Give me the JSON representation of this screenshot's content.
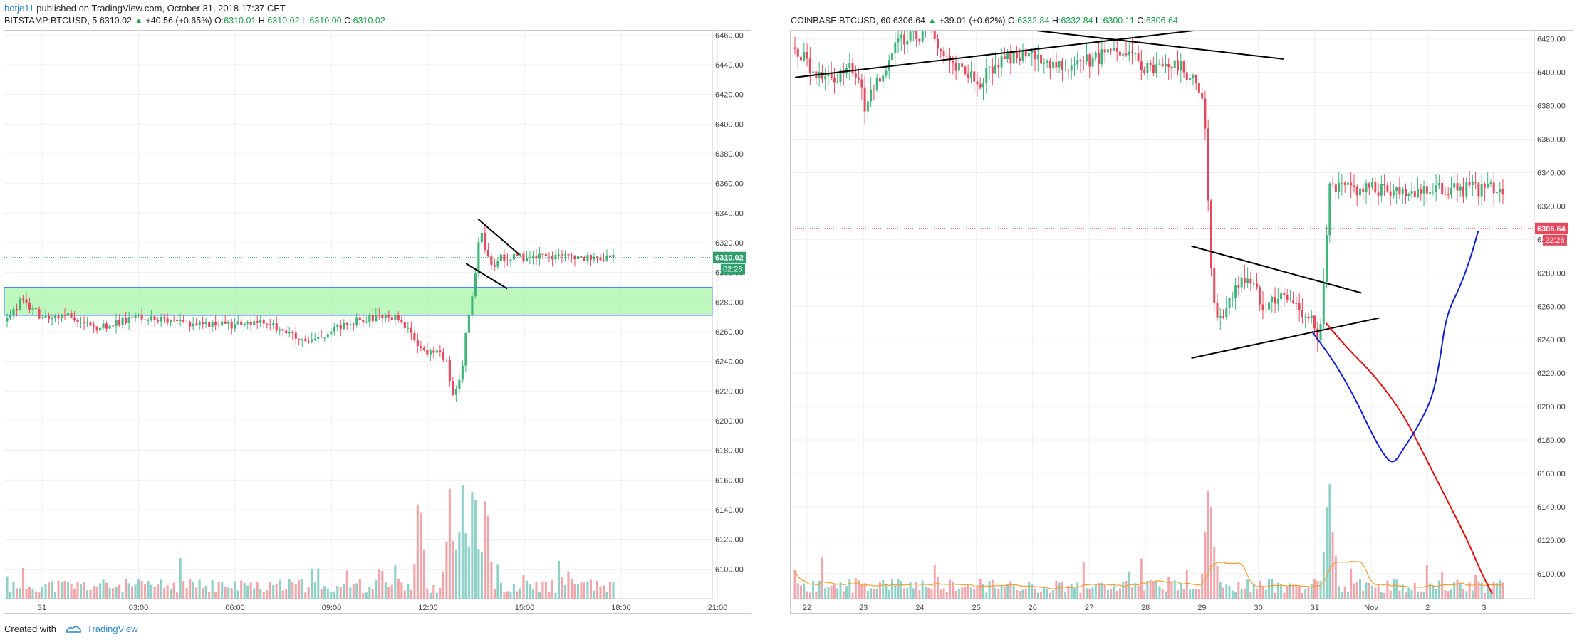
{
  "header": {
    "user": "botje11",
    "published": " published on TradingView.com, October 31, 2018 17:37 CET"
  },
  "left_symbol": {
    "name": "BITSTAMP:BTCUSD, 5",
    "last": "6310.02",
    "change": "+40.56 (+0.65%)",
    "o_label": "O:",
    "o": "6310.01",
    "h_label": "H:",
    "h": "6310.02",
    "l_label": "L:",
    "l": "6310.00",
    "c_label": "C:",
    "c": "6310.02"
  },
  "right_symbol": {
    "name": "COINBASE:BTCUSD, 60",
    "last": "6306.64",
    "change": "+39.01 (+0.62%)",
    "o_label": "O:",
    "o": "6332.84",
    "h_label": "H:",
    "h": "6332.84",
    "l_label": "L:",
    "l": "6300.11",
    "c_label": "C:",
    "c": "6306.64"
  },
  "footer": {
    "created": "Created with",
    "brand": "TradingView"
  },
  "colors": {
    "up": "#3fb47a",
    "down": "#e8485d",
    "up_volume": "#8fd1c7",
    "down_volume": "#f2a6ab",
    "zone": "#a8f5a8",
    "forecast_red": "#e01010",
    "forecast_blue": "#1020d0",
    "volume_ma": "#f0a030",
    "accent": "#2d86c7"
  },
  "chart_data": [
    {
      "type": "candlestick",
      "name": "BITSTAMP:BTCUSD, 5",
      "x_ticks": [
        "31",
        "03:00",
        "06:00",
        "09:00",
        "12:00",
        "15:00",
        "18:00",
        "21:00"
      ],
      "y_ticks": [
        6100,
        6120,
        6140,
        6160,
        6180,
        6200,
        6220,
        6240,
        6260,
        6280,
        6300,
        6320,
        6340,
        6360,
        6380,
        6400,
        6420,
        6440,
        6460
      ],
      "ylim": [
        6080,
        6463
      ],
      "last_price_label": "6310.02",
      "countdown_label": "02:28",
      "zone": [
        6271,
        6290
      ],
      "path": [
        [
          0,
          6267
        ],
        [
          0.025,
          6282
        ],
        [
          0.06,
          6268
        ],
        [
          0.1,
          6272
        ],
        [
          0.14,
          6262
        ],
        [
          0.18,
          6266
        ],
        [
          0.22,
          6271
        ],
        [
          0.27,
          6266
        ],
        [
          0.32,
          6266
        ],
        [
          0.37,
          6264
        ],
        [
          0.42,
          6266
        ],
        [
          0.455,
          6262
        ],
        [
          0.49,
          6252
        ],
        [
          0.52,
          6256
        ],
        [
          0.55,
          6264
        ],
        [
          0.58,
          6268
        ],
        [
          0.62,
          6270
        ],
        [
          0.645,
          6270
        ],
        [
          0.67,
          6255
        ],
        [
          0.69,
          6245
        ],
        [
          0.71,
          6248
        ],
        [
          0.725,
          6240
        ],
        [
          0.735,
          6215
        ],
        [
          0.75,
          6232
        ],
        [
          0.76,
          6270
        ],
        [
          0.77,
          6290
        ],
        [
          0.78,
          6330
        ],
        [
          0.79,
          6315
        ],
        [
          0.8,
          6302
        ],
        [
          0.81,
          6310
        ]
      ],
      "volume_spike_centers": [
        0.68,
        0.73,
        0.75,
        0.77,
        0.79
      ],
      "volume_ylim": [
        0,
        200
      ],
      "trendlines": [
        [
          [
            0.777,
            6336
          ],
          [
            0.845,
            6312
          ]
        ],
        [
          [
            0.757,
            6306
          ],
          [
            0.825,
            6289
          ]
        ]
      ]
    },
    {
      "type": "candlestick",
      "name": "COINBASE:BTCUSD, 60",
      "x_ticks": [
        "22",
        "23",
        "24",
        "25",
        "26",
        "27",
        "28",
        "29",
        "30",
        "31",
        "Nov",
        "2",
        "3"
      ],
      "y_ticks": [
        6100,
        6120,
        6140,
        6160,
        6180,
        6200,
        6220,
        6240,
        6260,
        6280,
        6300,
        6320,
        6340,
        6360,
        6380,
        6400,
        6420
      ],
      "ylim": [
        6085,
        6425
      ],
      "last_price_label": "6306.64",
      "countdown_label": "22:28",
      "path": [
        [
          0,
          6415
        ],
        [
          0.025,
          6400
        ],
        [
          0.05,
          6395
        ],
        [
          0.08,
          6405
        ],
        [
          0.1,
          6380
        ],
        [
          0.12,
          6395
        ],
        [
          0.15,
          6420
        ],
        [
          0.19,
          6425
        ],
        [
          0.22,
          6405
        ],
        [
          0.26,
          6395
        ],
        [
          0.3,
          6410
        ],
        [
          0.34,
          6408
        ],
        [
          0.4,
          6405
        ],
        [
          0.46,
          6412
        ],
        [
          0.5,
          6402
        ],
        [
          0.54,
          6404
        ],
        [
          0.56,
          6396
        ],
        [
          0.575,
          6388
        ],
        [
          0.58,
          6360
        ],
        [
          0.59,
          6260
        ],
        [
          0.6,
          6250
        ],
        [
          0.62,
          6270
        ],
        [
          0.64,
          6278
        ],
        [
          0.66,
          6262
        ],
        [
          0.69,
          6266
        ],
        [
          0.71,
          6260
        ],
        [
          0.73,
          6252
        ],
        [
          0.74,
          6232
        ],
        [
          0.75,
          6300
        ],
        [
          0.755,
          6330
        ]
      ],
      "volume_spike_centers": [
        0.585,
        0.755
      ],
      "volume_ylim": [
        0,
        200
      ],
      "trendlines": [
        [
          [
            0.0,
            6397
          ],
          [
            0.704,
            6432
          ]
        ],
        [
          [
            0.341,
            6425
          ],
          [
            0.69,
            6408
          ]
        ],
        [
          [
            0.56,
            6296
          ],
          [
            0.8,
            6268
          ]
        ],
        [
          [
            0.56,
            6229
          ],
          [
            0.825,
            6253
          ]
        ]
      ],
      "forecast_red": [
        [
          0.75,
          6250
        ],
        [
          0.78,
          6235
        ],
        [
          0.82,
          6218
        ],
        [
          0.86,
          6195
        ],
        [
          0.89,
          6170
        ],
        [
          0.92,
          6145
        ],
        [
          0.95,
          6120
        ],
        [
          0.97,
          6100
        ],
        [
          0.985,
          6088
        ]
      ],
      "forecast_blue": [
        [
          0.73,
          6245
        ],
        [
          0.76,
          6228
        ],
        [
          0.79,
          6206
        ],
        [
          0.81,
          6188
        ],
        [
          0.83,
          6172
        ],
        [
          0.845,
          6165
        ],
        [
          0.86,
          6175
        ],
        [
          0.88,
          6188
        ],
        [
          0.9,
          6205
        ],
        [
          0.91,
          6225
        ],
        [
          0.92,
          6255
        ],
        [
          0.94,
          6272
        ],
        [
          0.955,
          6290
        ],
        [
          0.965,
          6305
        ]
      ]
    }
  ]
}
